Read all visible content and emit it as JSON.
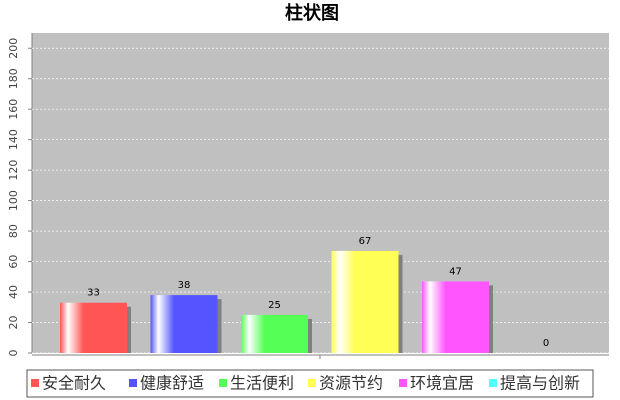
{
  "chart_data": {
    "type": "bar",
    "title": "柱状图",
    "categories": [
      null
    ],
    "series": [
      {
        "name": "安全耐久",
        "color": "#ff5555",
        "values": [
          33
        ]
      },
      {
        "name": "健康舒适",
        "color": "#5555ff",
        "values": [
          38
        ]
      },
      {
        "name": "生活便利",
        "color": "#55ff55",
        "values": [
          25
        ]
      },
      {
        "name": "资源节约",
        "color": "#ffff55",
        "values": [
          67
        ]
      },
      {
        "name": "环境宜居",
        "color": "#ff55ff",
        "values": [
          47
        ]
      },
      {
        "name": "提高与创新",
        "color": "#55ffff",
        "values": [
          0
        ]
      }
    ],
    "ylim": [
      0,
      210
    ],
    "yticks": [
      0,
      20,
      40,
      60,
      80,
      100,
      120,
      140,
      160,
      180,
      200
    ],
    "grid": true,
    "legend": "bottom"
  }
}
